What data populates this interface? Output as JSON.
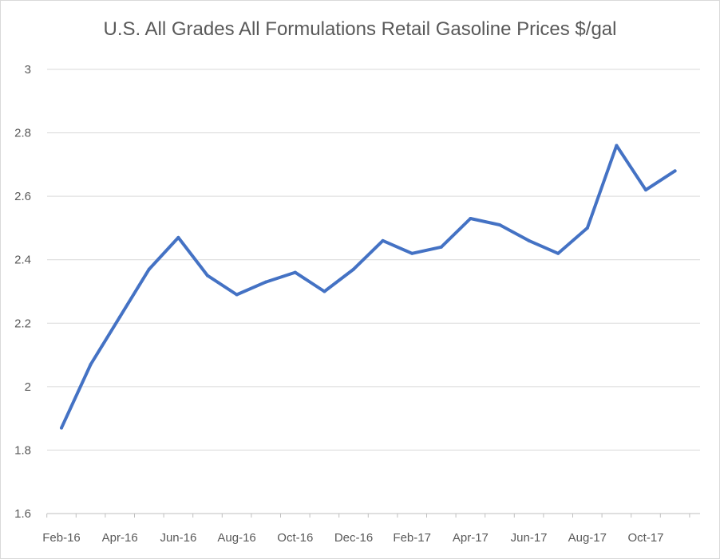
{
  "chart_data": {
    "type": "line",
    "title": "U.S. All Grades All Formulations Retail Gasoline Prices $/gal",
    "xlabel": "",
    "ylabel": "",
    "ylim": [
      1.6,
      3
    ],
    "yticks": [
      "1.6",
      "1.8",
      "2",
      "2.2",
      "2.4",
      "2.6",
      "2.8",
      "3"
    ],
    "grid": true,
    "legend": "none",
    "line_color": "#4472c4",
    "x": [
      "Feb-16",
      "Mar-16",
      "Apr-16",
      "May-16",
      "Jun-16",
      "Jul-16",
      "Aug-16",
      "Sep-16",
      "Oct-16",
      "Nov-16",
      "Dec-16",
      "Jan-17",
      "Feb-17",
      "Mar-17",
      "Apr-17",
      "May-17",
      "Jun-17",
      "Jul-17",
      "Aug-17",
      "Sep-17",
      "Oct-17",
      "Nov-17"
    ],
    "xtick_labels": [
      "Feb-16",
      "Apr-16",
      "Jun-16",
      "Aug-16",
      "Oct-16",
      "Dec-16",
      "Feb-17",
      "Apr-17",
      "Jun-17",
      "Aug-17",
      "Oct-17"
    ],
    "series": [
      {
        "values": [
          1.87,
          2.07,
          2.22,
          2.37,
          2.47,
          2.35,
          2.29,
          2.33,
          2.36,
          2.3,
          2.37,
          2.46,
          2.42,
          2.44,
          2.53,
          2.51,
          2.46,
          2.42,
          2.5,
          2.76,
          2.62,
          2.68
        ]
      }
    ]
  }
}
